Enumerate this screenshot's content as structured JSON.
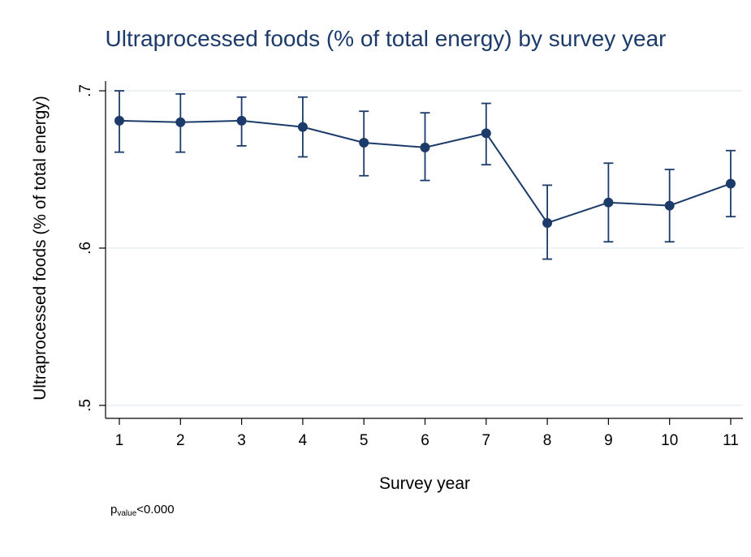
{
  "chart_data": {
    "type": "line",
    "title": "Ultraprocessed foods (% of total energy) by survey year",
    "xlabel": "Survey year",
    "ylabel": "Ultraprocessed foods (% of total energy)",
    "x": [
      1,
      2,
      3,
      4,
      5,
      6,
      7,
      8,
      9,
      10,
      11
    ],
    "x_tick_labels": [
      "1",
      "2",
      "3",
      "4",
      "5",
      "6",
      "7",
      "8",
      "9",
      "10",
      "11"
    ],
    "y": [
      0.681,
      0.68,
      0.681,
      0.677,
      0.667,
      0.664,
      0.673,
      0.616,
      0.629,
      0.627,
      0.641
    ],
    "ci_lower": [
      0.661,
      0.661,
      0.665,
      0.658,
      0.646,
      0.643,
      0.653,
      0.593,
      0.604,
      0.604,
      0.62
    ],
    "ci_upper": [
      0.7,
      0.698,
      0.696,
      0.696,
      0.687,
      0.686,
      0.692,
      0.64,
      0.654,
      0.65,
      0.662
    ],
    "ylim": [
      0.5,
      0.7
    ],
    "xlim": [
      1,
      11
    ],
    "y_ticks": [
      0.5,
      0.6,
      0.7
    ],
    "y_tick_labels": [
      ".5",
      ".6",
      ".7"
    ],
    "grid": true,
    "colors": {
      "series": "#1c3b6b",
      "grid": "#e6eef2",
      "title": "#1c3b6b"
    }
  },
  "note": {
    "main": "p",
    "subscript": "value",
    "rest": "<0.000"
  }
}
